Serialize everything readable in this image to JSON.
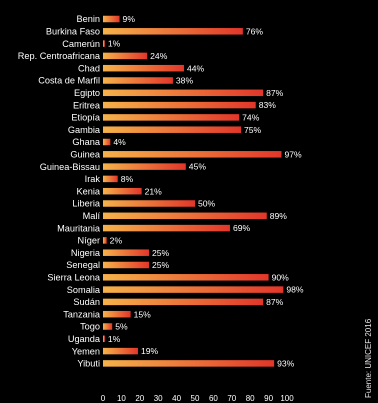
{
  "chart_data": {
    "type": "bar",
    "orientation": "horizontal",
    "categories": [
      "Benin",
      "Burkina Faso",
      "Camerún",
      "Rep. Centroafricana",
      "Chad",
      "Costa de Marfil",
      "Egipto",
      "Eritrea",
      "Etiopía",
      "Gambia",
      "Ghana",
      "Guinea",
      "Guinea-Bissau",
      "Irak",
      "Kenia",
      "Liberia",
      "Malí",
      "Mauritania",
      "Níger",
      "Nigeria",
      "Senegal",
      "Sierra Leona",
      "Somalia",
      "Sudán",
      "Tanzania",
      "Togo",
      "Uganda",
      "Yemen",
      "Yibuti"
    ],
    "values": [
      9,
      76,
      1,
      24,
      44,
      38,
      87,
      83,
      74,
      75,
      4,
      97,
      45,
      8,
      21,
      50,
      89,
      69,
      2,
      25,
      25,
      90,
      98,
      87,
      15,
      5,
      1,
      19,
      93
    ],
    "value_labels": [
      "9%",
      "76%",
      "1%",
      "24%",
      "44%",
      "38%",
      "87%",
      "83%",
      "74%",
      "75%",
      "4%",
      "97%",
      "45%",
      "8%",
      "21%",
      "50%",
      "89%",
      "69%",
      "2%",
      "25%",
      "25%",
      "90%",
      "98%",
      "87%",
      "15%",
      "5%",
      "1%",
      "19%",
      "93%"
    ],
    "xlim": [
      0,
      100
    ],
    "xticks": [
      "0",
      "10",
      "20",
      "30",
      "40",
      "50",
      "60",
      "70",
      "80",
      "90",
      "100"
    ],
    "source": "Fuente: UNICEF 2016",
    "colors": {
      "background": "#000000",
      "bar_start": "#f6b24a",
      "bar_end": "#e2362a",
      "text": "#ffffff"
    }
  }
}
